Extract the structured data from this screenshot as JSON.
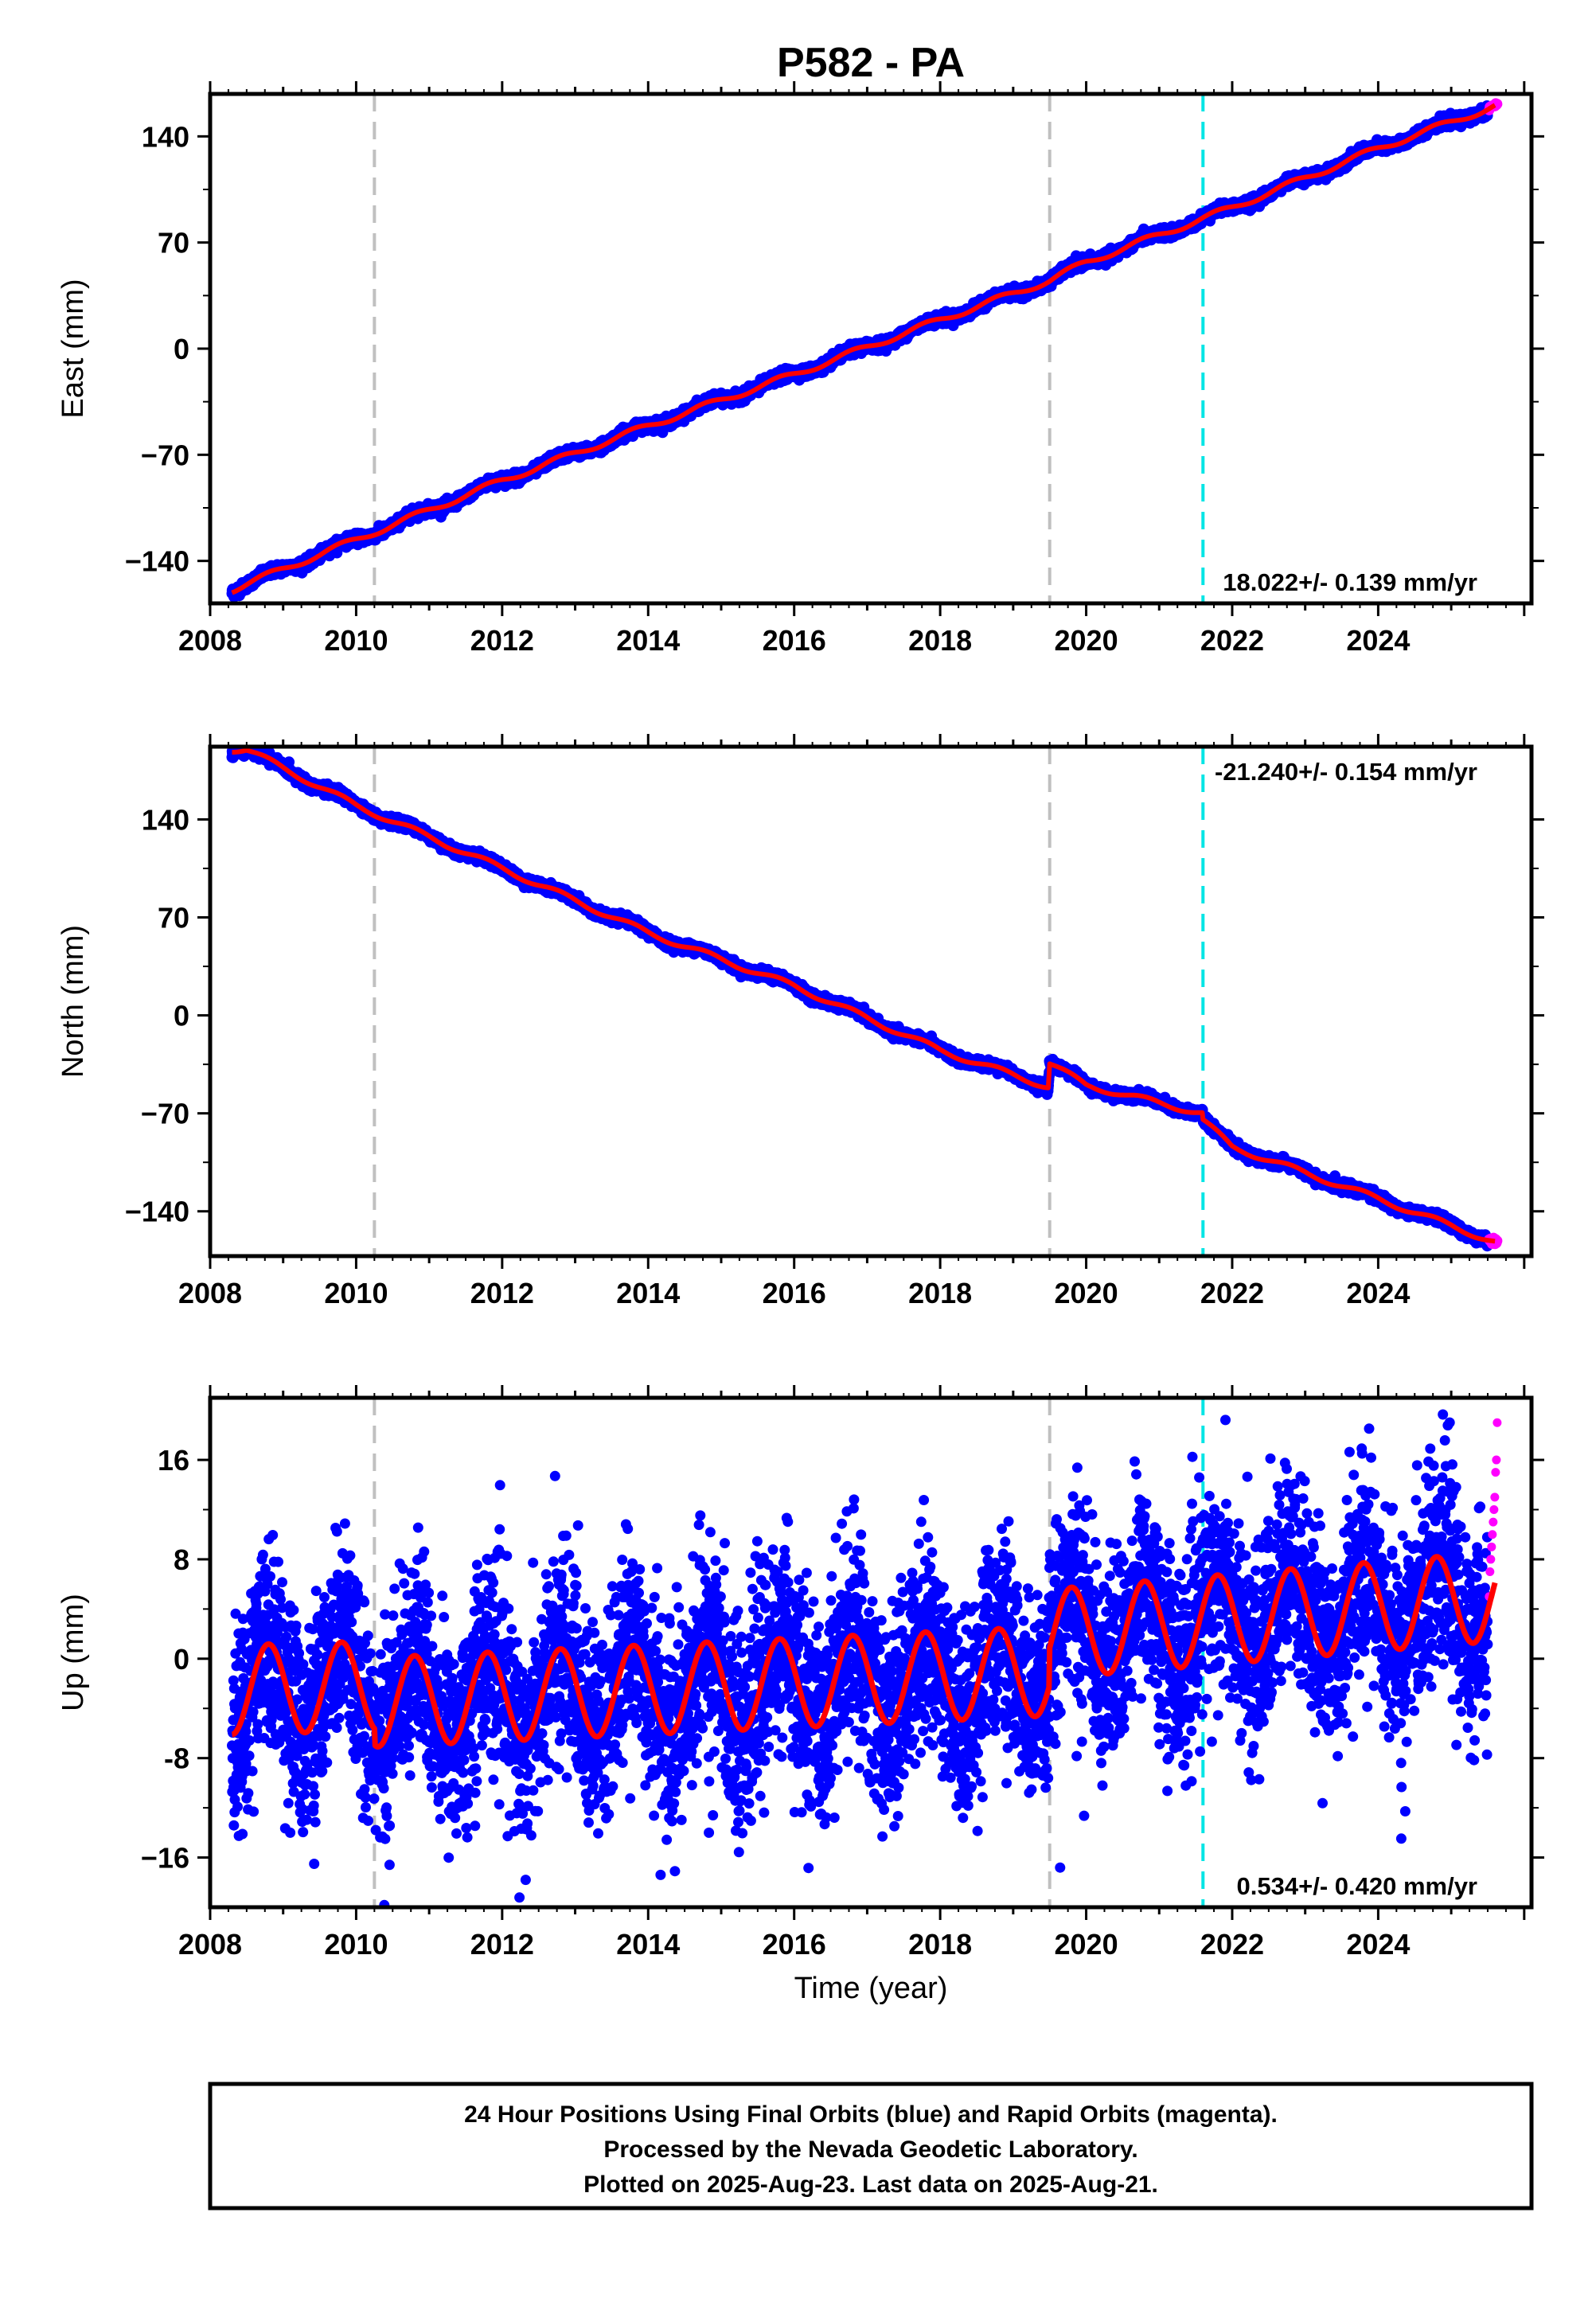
{
  "title": "P582 - PA",
  "xlabel": "Time (year)",
  "caption": {
    "line1": "24 Hour Positions Using Final Orbits (blue) and Rapid Orbits (magenta).",
    "line2": "Processed by the Nevada Geodetic Laboratory.",
    "line3": "Plotted on 2025-Aug-23. Last data on 2025-Aug-21."
  },
  "colors": {
    "final_orbit_points": "#0000ff",
    "rapid_orbit_points": "#ff00ff",
    "model_fit": "#ff0000",
    "event_line_gray": "#c0c0c0",
    "event_line_cyan": "#00e5e5"
  },
  "chart_data": [
    {
      "type": "scatter",
      "component": "East",
      "ylabel": "East (mm)",
      "rate_label": "18.022+/- 0.139 mm/yr",
      "xlim": [
        2008.0,
        2026.1
      ],
      "ylim": [
        -168,
        168
      ],
      "x_ticks": [
        2008,
        2010,
        2012,
        2014,
        2016,
        2018,
        2020,
        2022,
        2024
      ],
      "y_ticks": [
        140,
        70,
        0,
        -70,
        -140
      ],
      "y_tick_labels": [
        "140",
        "70",
        "0",
        "−70",
        "−140"
      ],
      "event_lines": [
        {
          "x": 2010.25,
          "style": "gray-dashed"
        },
        {
          "x": 2019.5,
          "style": "gray-dashed"
        },
        {
          "x": 2021.6,
          "style": "cyan-dashed"
        }
      ],
      "trend_fit": {
        "series": "model fit",
        "x": [
          2008.3,
          2010.0,
          2012.0,
          2014.0,
          2016.0,
          2018.0,
          2019.5,
          2020.0,
          2022.0,
          2024.0,
          2025.6
        ],
        "values": [
          -159,
          -126,
          -87,
          -51,
          -17,
          19,
          45,
          57,
          93,
          132,
          160
        ]
      },
      "seasonal_amplitude_mm": 2,
      "final_orbits": {
        "x_range": [
          2008.3,
          2025.5
        ],
        "noise_mm": 1.6
      },
      "rapid_orbits": {
        "x_range": [
          2025.52,
          2025.63
        ]
      }
    },
    {
      "type": "scatter",
      "component": "North",
      "ylabel": "North (mm)",
      "rate_label": "-21.240+/- 0.154 mm/yr",
      "xlim": [
        2008.0,
        2026.1
      ],
      "ylim": [
        -172,
        192
      ],
      "x_ticks": [
        2008,
        2010,
        2012,
        2014,
        2016,
        2018,
        2020,
        2022,
        2024
      ],
      "y_ticks": [
        140,
        70,
        0,
        -70,
        -140
      ],
      "y_tick_labels": [
        "140",
        "70",
        "0",
        "−70",
        "−140"
      ],
      "event_lines": [
        {
          "x": 2010.25,
          "style": "gray-dashed"
        },
        {
          "x": 2019.5,
          "style": "gray-dashed"
        },
        {
          "x": 2021.6,
          "style": "cyan-dashed"
        }
      ],
      "trend_fit": {
        "series": "model fit",
        "x": [
          2008.3,
          2008.5,
          2010.0,
          2012.0,
          2014.0,
          2016.0,
          2018.0,
          2019.48,
          2019.5,
          2020.0,
          2021.59,
          2021.6,
          2022.0,
          2024.0,
          2025.6
        ],
        "values": [
          190,
          190,
          150,
          105,
          59,
          21,
          -25,
          -51,
          -34,
          -50,
          -70,
          -75,
          -94,
          -131,
          -162
        ]
      },
      "seasonal_amplitude_mm": 2,
      "final_orbits": {
        "x_range": [
          2008.3,
          2025.5
        ],
        "noise_mm": 1.6
      },
      "rapid_orbits": {
        "x_range": [
          2025.52,
          2025.63
        ]
      }
    },
    {
      "type": "scatter",
      "component": "Up",
      "ylabel": "Up (mm)",
      "rate_label": "0.534+/- 0.420 mm/yr",
      "xlim": [
        2008.0,
        2026.1
      ],
      "ylim": [
        -20,
        21
      ],
      "x_ticks": [
        2008,
        2010,
        2012,
        2014,
        2016,
        2018,
        2020,
        2022,
        2024
      ],
      "y_ticks": [
        16,
        8,
        0,
        -8,
        -16
      ],
      "y_tick_labels": [
        "16",
        "8",
        "0",
        "-8",
        "−16"
      ],
      "event_lines": [
        {
          "x": 2010.25,
          "style": "gray-dashed"
        },
        {
          "x": 2019.5,
          "style": "gray-dashed"
        },
        {
          "x": 2021.6,
          "style": "cyan-dashed"
        }
      ],
      "trend_fit": {
        "series": "model fit",
        "x": [
          2008.3,
          2010.25,
          2010.26,
          2019.49,
          2019.5,
          2025.6
        ],
        "values": [
          -2.5,
          -2.2,
          -3.5,
          -1.0,
          2.0,
          5.0
        ]
      },
      "seasonal_amplitude_mm": 3.6,
      "final_orbits": {
        "x_range": [
          2008.3,
          2025.5
        ],
        "noise_mm": 4.0
      },
      "rapid_orbits": {
        "x_range": [
          2025.52,
          2025.63
        ],
        "values": [
          5,
          7,
          8,
          9,
          10,
          11,
          12,
          13,
          15,
          16,
          19
        ]
      }
    }
  ]
}
